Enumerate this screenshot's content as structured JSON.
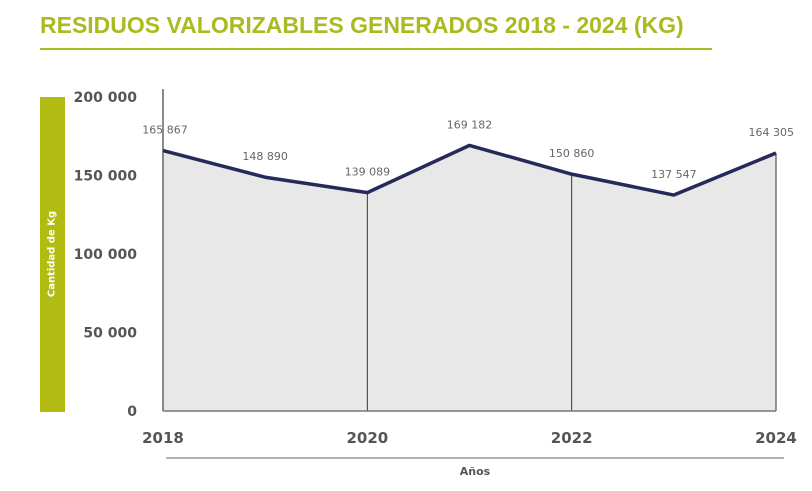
{
  "chart_data": {
    "type": "area",
    "title": "RESIDUOS VALORIZABLES GENERADOS 2018 - 2024 (KG)",
    "xlabel": "Años",
    "ylabel": "Cantidad de Kg",
    "x": [
      2018,
      2019,
      2020,
      2021,
      2022,
      2023,
      2024
    ],
    "x_tick_labels": [
      "2018",
      "2020",
      "2022",
      "2024"
    ],
    "y_tick_labels": [
      "200 000",
      "150 000",
      "100 000",
      "50 000",
      "0"
    ],
    "y_ticks": [
      200000,
      150000,
      100000,
      50000,
      0
    ],
    "ylim": [
      0,
      200000
    ],
    "values": [
      165867,
      148890,
      139089,
      169182,
      150860,
      137547,
      164305
    ],
    "data_labels": [
      "165 867",
      "148 890",
      "139 089",
      "169 182",
      "150 860",
      "137 547",
      "164 305"
    ],
    "colors": {
      "title": "#a9bb1e",
      "line": "#262a5a",
      "fill": "#e8e8e8",
      "ylabel_bar": "#b2bb12"
    }
  }
}
